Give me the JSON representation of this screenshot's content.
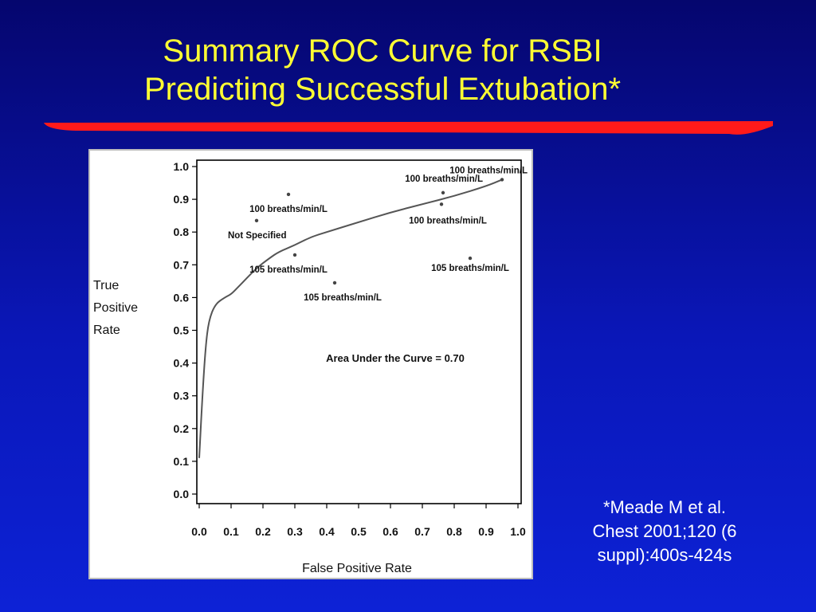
{
  "slide": {
    "title_lines": [
      "Summary ROC Curve for RSBI",
      "Predicting Successful Extubation*"
    ],
    "citation_lines": [
      "*Meade M et al.",
      "Chest 2001;120 (6",
      "suppl):400s-424s"
    ],
    "title_color": "#ffff33",
    "rule_color": "#ff1a1a"
  },
  "chart_data": {
    "type": "scatter",
    "xlabel": "False  Positive  Rate",
    "ylabel_lines": [
      "True",
      "Positive",
      "Rate"
    ],
    "xlim": [
      0,
      1
    ],
    "ylim": [
      0,
      1
    ],
    "xticks": [
      "0.0",
      "0.1",
      "0.2",
      "0.3",
      "0.4",
      "0.5",
      "0.6",
      "0.7",
      "0.8",
      "0.9",
      "1.0"
    ],
    "yticks": [
      "0.0",
      "0.1",
      "0.2",
      "0.3",
      "0.4",
      "0.5",
      "0.6",
      "0.7",
      "0.8",
      "0.9",
      "1.0"
    ],
    "grid": false,
    "annotation": "Area Under the Curve = 0.70",
    "curve": {
      "x": [
        0.0,
        0.01,
        0.02,
        0.03,
        0.05,
        0.08,
        0.1,
        0.12,
        0.15,
        0.18,
        0.22,
        0.25,
        0.3,
        0.35,
        0.4,
        0.5,
        0.6,
        0.7,
        0.8,
        0.9,
        0.95
      ],
      "y": [
        0.11,
        0.3,
        0.45,
        0.53,
        0.58,
        0.6,
        0.61,
        0.63,
        0.66,
        0.69,
        0.72,
        0.74,
        0.76,
        0.785,
        0.8,
        0.83,
        0.86,
        0.885,
        0.91,
        0.94,
        0.96
      ]
    },
    "points": [
      {
        "x": 0.28,
        "y": 0.915,
        "label": "100 breaths/min/L",
        "align": "middle",
        "dy": 22,
        "dx": 0
      },
      {
        "x": 0.18,
        "y": 0.835,
        "label": "Not Specified",
        "align": "start",
        "dy": 22,
        "dx": -36
      },
      {
        "x": 0.3,
        "y": 0.73,
        "label": "105 breaths/min/L",
        "align": "middle",
        "dy": 22,
        "dx": -8
      },
      {
        "x": 0.425,
        "y": 0.645,
        "label": "105 breaths/min/L",
        "align": "middle",
        "dy": 22,
        "dx": 10
      },
      {
        "x": 0.765,
        "y": 0.92,
        "label": "100 breaths/min/L",
        "align": "end",
        "dy": -14,
        "dx": 50
      },
      {
        "x": 0.76,
        "y": 0.885,
        "label": "100 breaths/min/L",
        "align": "middle",
        "dy": 24,
        "dx": 8
      },
      {
        "x": 0.85,
        "y": 0.72,
        "label": "105 breaths/min/L",
        "align": "middle",
        "dy": 16,
        "dx": 0
      },
      {
        "x": 0.95,
        "y": 0.96,
        "label": "100 breaths/min/L",
        "align": "end",
        "dy": -8,
        "dx": 32
      }
    ]
  }
}
